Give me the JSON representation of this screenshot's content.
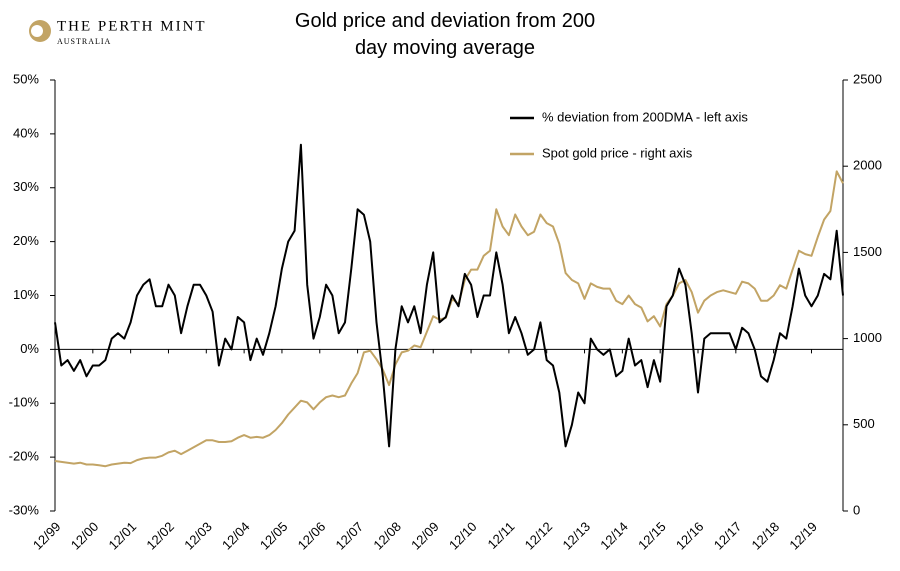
{
  "logo": {
    "name": "THE PERTH MINT",
    "subtitle": "AUSTRALIA"
  },
  "chart_data": {
    "type": "line",
    "title": "Gold price and deviation from 200 day moving average",
    "categories": [
      "12/99",
      null,
      null,
      null,
      null,
      null,
      "12/00",
      null,
      null,
      null,
      null,
      null,
      "12/01",
      null,
      null,
      null,
      null,
      null,
      "12/02",
      null,
      null,
      null,
      null,
      null,
      "12/03",
      null,
      null,
      null,
      null,
      null,
      "12/04",
      null,
      null,
      null,
      null,
      null,
      "12/05",
      null,
      null,
      null,
      null,
      null,
      "12/06",
      null,
      null,
      null,
      null,
      null,
      "12/07",
      null,
      null,
      null,
      null,
      null,
      "12/08",
      null,
      null,
      null,
      null,
      null,
      "12/09",
      null,
      null,
      null,
      null,
      null,
      "12/10",
      null,
      null,
      null,
      null,
      null,
      "12/11",
      null,
      null,
      null,
      null,
      null,
      "12/12",
      null,
      null,
      null,
      null,
      null,
      "12/13",
      null,
      null,
      null,
      null,
      null,
      "12/14",
      null,
      null,
      null,
      null,
      null,
      "12/15",
      null,
      null,
      null,
      null,
      null,
      "12/16",
      null,
      null,
      null,
      null,
      null,
      "12/17",
      null,
      null,
      null,
      null,
      null,
      "12/18",
      null,
      null,
      null,
      null,
      null,
      "12/19",
      null,
      null,
      null,
      null,
      null
    ],
    "series": [
      {
        "name": "% deviation from 200DMA - left axis",
        "color": "#000000",
        "axis": "y",
        "values": [
          5,
          -3,
          -2,
          -4,
          -2,
          -5,
          -3,
          -3,
          -2,
          2,
          3,
          2,
          5,
          10,
          12,
          13,
          8,
          8,
          12,
          10,
          3,
          8,
          12,
          12,
          10,
          7,
          -3,
          2,
          0,
          6,
          5,
          -2,
          2,
          -1,
          3,
          8,
          15,
          20,
          22,
          38,
          12,
          2,
          6,
          12,
          10,
          3,
          5,
          15,
          26,
          25,
          20,
          5,
          -5,
          -18,
          0,
          8,
          5,
          8,
          3,
          12,
          18,
          5,
          6,
          10,
          8,
          14,
          12,
          6,
          10,
          10,
          18,
          12,
          3,
          6,
          3,
          -1,
          0,
          5,
          -2,
          -3,
          -8,
          -18,
          -14,
          -8,
          -10,
          2,
          0,
          -1,
          0,
          -5,
          -4,
          2,
          -3,
          -2,
          -7,
          -2,
          -6,
          8,
          10,
          15,
          12,
          3,
          -8,
          2,
          3,
          3,
          3,
          3,
          0,
          4,
          3,
          0,
          -5,
          -6,
          -2,
          3,
          2,
          8,
          15,
          10,
          8,
          10,
          14,
          13,
          22,
          10
        ]
      },
      {
        "name": "Spot gold price - right axis",
        "color": "#c2a465",
        "axis": "y2",
        "values": [
          290,
          285,
          280,
          275,
          280,
          270,
          270,
          265,
          260,
          270,
          275,
          280,
          278,
          295,
          305,
          310,
          310,
          320,
          340,
          350,
          330,
          350,
          370,
          390,
          410,
          410,
          400,
          400,
          405,
          425,
          440,
          425,
          430,
          425,
          440,
          470,
          510,
          560,
          600,
          640,
          630,
          590,
          630,
          660,
          670,
          660,
          670,
          740,
          800,
          920,
          930,
          880,
          820,
          730,
          850,
          920,
          930,
          960,
          950,
          1040,
          1130,
          1110,
          1120,
          1230,
          1200,
          1340,
          1400,
          1400,
          1480,
          1510,
          1750,
          1650,
          1600,
          1720,
          1650,
          1600,
          1620,
          1720,
          1670,
          1650,
          1550,
          1380,
          1340,
          1320,
          1230,
          1320,
          1300,
          1290,
          1290,
          1220,
          1200,
          1250,
          1200,
          1180,
          1100,
          1130,
          1070,
          1200,
          1250,
          1320,
          1340,
          1270,
          1150,
          1220,
          1250,
          1270,
          1280,
          1270,
          1260,
          1330,
          1320,
          1290,
          1220,
          1220,
          1250,
          1310,
          1290,
          1400,
          1510,
          1490,
          1480,
          1590,
          1690,
          1740,
          1970,
          1900
        ]
      }
    ],
    "ylim": [
      -30,
      50
    ],
    "yticks": [
      {
        "value": -30,
        "label": "-30%"
      },
      {
        "value": -20,
        "label": "-20%"
      },
      {
        "value": -10,
        "label": "-10%"
      },
      {
        "value": 0,
        "label": "0%"
      },
      {
        "value": 10,
        "label": "10%"
      },
      {
        "value": 20,
        "label": "20%"
      },
      {
        "value": 30,
        "label": "30%"
      },
      {
        "value": 40,
        "label": "40%"
      },
      {
        "value": 50,
        "label": "50%"
      }
    ],
    "y2lim": [
      0,
      2500
    ],
    "y2ticks": [
      0,
      500,
      1000,
      1500,
      2000,
      2500
    ],
    "grid": false,
    "legend": "top-right"
  }
}
